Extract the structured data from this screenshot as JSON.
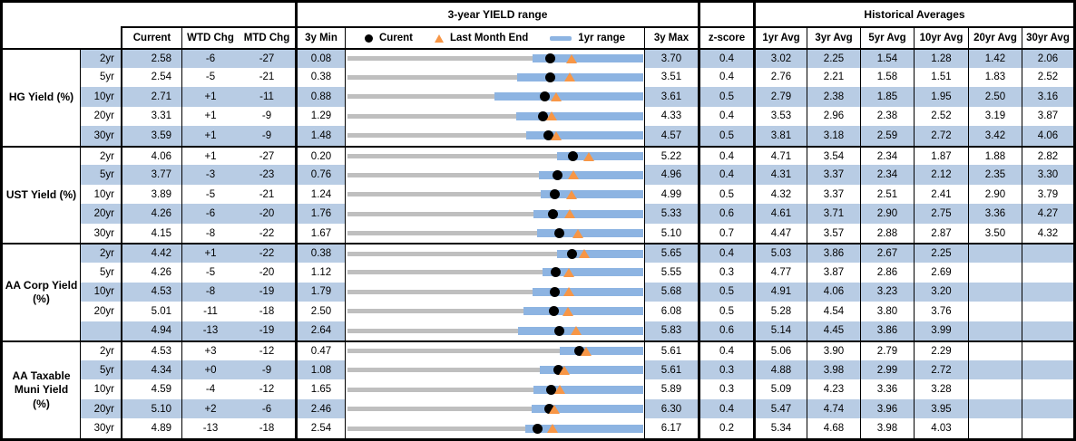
{
  "header": {
    "chart_group_title": "3-year YIELD range",
    "historical_group_title": "Historical Averages",
    "col_current": "Current",
    "col_wtd": "WTD Chg",
    "col_mtd": "MTD Chg",
    "col_min": "3y Min",
    "col_max": "3y Max",
    "col_zscore": "z-score",
    "avg_cols": [
      "1yr Avg",
      "3yr Avg",
      "5yr Avg",
      "10yr Avg",
      "20yr Avg",
      "30yr Avg"
    ],
    "legend": {
      "current": "Curent",
      "last_month_end": "Last Month End",
      "range": "1yr range"
    }
  },
  "colors": {
    "row_band": "#b8cce4",
    "range_bar": "#8db4e2",
    "track": "#bfbfbf",
    "current_dot": "#000000",
    "last_month_triangle": "#f79646"
  },
  "chart_data": {
    "type": "table",
    "embedded_chart": {
      "type": "range-dot",
      "note": "per-row horizontal range from 3y Min to 3y Max; blue bar = 1yr range; black dot = Current; orange triangle = Last Month End",
      "legend_position": "header row of chart column"
    },
    "sections": [
      {
        "label_lines": [
          "HG Yield (%)"
        ],
        "rows": [
          {
            "tenor": "2yr",
            "current": "2.58",
            "wtd": "-6",
            "mtd": "-27",
            "min": "0.08",
            "max": "3.70",
            "z": "0.4",
            "avgs": [
              "3.02",
              "2.25",
              "1.54",
              "1.28",
              "1.42",
              "2.06"
            ],
            "cur_v": 2.58,
            "min_v": 0.08,
            "max_v": 3.7,
            "lme_v": 2.85,
            "r1lo": 2.4,
            "r1hi": 3.7
          },
          {
            "tenor": "5yr",
            "current": "2.54",
            "wtd": "-5",
            "mtd": "-21",
            "min": "0.38",
            "max": "3.51",
            "z": "0.4",
            "avgs": [
              "2.76",
              "2.21",
              "1.58",
              "1.51",
              "1.83",
              "2.52"
            ],
            "cur_v": 2.54,
            "min_v": 0.38,
            "max_v": 3.51,
            "lme_v": 2.75,
            "r1lo": 2.22,
            "r1hi": 3.51
          },
          {
            "tenor": "10yr",
            "current": "2.71",
            "wtd": "+1",
            "mtd": "-11",
            "min": "0.88",
            "max": "3.61",
            "z": "0.5",
            "avgs": [
              "2.79",
              "2.38",
              "1.85",
              "1.95",
              "2.50",
              "3.16"
            ],
            "cur_v": 2.71,
            "min_v": 0.88,
            "max_v": 3.61,
            "lme_v": 2.82,
            "r1lo": 2.27,
            "r1hi": 3.61
          },
          {
            "tenor": "20yr",
            "current": "3.31",
            "wtd": "+1",
            "mtd": "-9",
            "min": "1.29",
            "max": "4.33",
            "z": "0.4",
            "avgs": [
              "3.53",
              "2.96",
              "2.38",
              "2.52",
              "3.19",
              "3.87"
            ],
            "cur_v": 3.31,
            "min_v": 1.29,
            "max_v": 4.33,
            "lme_v": 3.4,
            "r1lo": 3.07,
            "r1hi": 4.33
          },
          {
            "tenor": "30yr",
            "current": "3.59",
            "wtd": "+1",
            "mtd": "-9",
            "min": "1.48",
            "max": "4.57",
            "z": "0.5",
            "avgs": [
              "3.81",
              "3.18",
              "2.59",
              "2.72",
              "3.42",
              "4.06"
            ],
            "cur_v": 3.59,
            "min_v": 1.48,
            "max_v": 4.57,
            "lme_v": 3.68,
            "r1lo": 3.39,
            "r1hi": 4.57
          }
        ]
      },
      {
        "label_lines": [
          "UST Yield (%)"
        ],
        "rows": [
          {
            "tenor": "2yr",
            "current": "4.06",
            "wtd": "+1",
            "mtd": "-27",
            "min": "0.20",
            "max": "5.22",
            "z": "0.4",
            "avgs": [
              "4.71",
              "3.54",
              "2.34",
              "1.87",
              "1.88",
              "2.82"
            ],
            "cur_v": 4.06,
            "min_v": 0.2,
            "max_v": 5.22,
            "lme_v": 4.33,
            "r1lo": 3.84,
            "r1hi": 5.22
          },
          {
            "tenor": "5yr",
            "current": "3.77",
            "wtd": "-3",
            "mtd": "-23",
            "min": "0.76",
            "max": "4.96",
            "z": "0.4",
            "avgs": [
              "4.31",
              "3.37",
              "2.34",
              "2.12",
              "2.35",
              "3.30"
            ],
            "cur_v": 3.77,
            "min_v": 0.76,
            "max_v": 4.96,
            "lme_v": 4.0,
            "r1lo": 3.55,
            "r1hi": 4.96
          },
          {
            "tenor": "10yr",
            "current": "3.89",
            "wtd": "-5",
            "mtd": "-21",
            "min": "1.24",
            "max": "4.99",
            "z": "0.5",
            "avgs": [
              "4.32",
              "3.37",
              "2.51",
              "2.41",
              "2.90",
              "3.79"
            ],
            "cur_v": 3.89,
            "min_v": 1.24,
            "max_v": 4.99,
            "lme_v": 4.1,
            "r1lo": 3.75,
            "r1hi": 4.99
          },
          {
            "tenor": "20yr",
            "current": "4.26",
            "wtd": "-6",
            "mtd": "-20",
            "min": "1.76",
            "max": "5.33",
            "z": "0.6",
            "avgs": [
              "4.61",
              "3.71",
              "2.90",
              "2.75",
              "3.36",
              "4.27"
            ],
            "cur_v": 4.26,
            "min_v": 1.76,
            "max_v": 5.33,
            "lme_v": 4.46,
            "r1lo": 4.06,
            "r1hi": 5.33
          },
          {
            "tenor": "30yr",
            "current": "4.15",
            "wtd": "-8",
            "mtd": "-22",
            "min": "1.67",
            "max": "5.10",
            "z": "0.7",
            "avgs": [
              "4.47",
              "3.57",
              "2.88",
              "2.87",
              "3.50",
              "4.32"
            ],
            "cur_v": 4.15,
            "min_v": 1.67,
            "max_v": 5.1,
            "lme_v": 4.37,
            "r1lo": 3.92,
            "r1hi": 5.1
          }
        ]
      },
      {
        "label_lines": [
          "AA Corp Yield",
          "(%)"
        ],
        "rows": [
          {
            "tenor": "2yr",
            "current": "4.42",
            "wtd": "+1",
            "mtd": "-22",
            "min": "0.38",
            "max": "5.65",
            "z": "0.4",
            "avgs": [
              "5.03",
              "3.86",
              "2.67",
              "2.25",
              "",
              ""
            ],
            "cur_v": 4.42,
            "min_v": 0.38,
            "max_v": 5.65,
            "lme_v": 4.64,
            "r1lo": 4.21,
            "r1hi": 5.65
          },
          {
            "tenor": "5yr",
            "current": "4.26",
            "wtd": "-5",
            "mtd": "-20",
            "min": "1.12",
            "max": "5.55",
            "z": "0.3",
            "avgs": [
              "4.77",
              "3.87",
              "2.86",
              "2.69",
              "",
              ""
            ],
            "cur_v": 4.26,
            "min_v": 1.12,
            "max_v": 5.55,
            "lme_v": 4.46,
            "r1lo": 4.11,
            "r1hi": 5.55
          },
          {
            "tenor": "10yr",
            "current": "4.53",
            "wtd": "-8",
            "mtd": "-19",
            "min": "1.79",
            "max": "5.68",
            "z": "0.5",
            "avgs": [
              "4.91",
              "4.06",
              "3.23",
              "3.20",
              "",
              ""
            ],
            "cur_v": 4.53,
            "min_v": 1.79,
            "max_v": 5.68,
            "lme_v": 4.72,
            "r1lo": 4.28,
            "r1hi": 5.68
          },
          {
            "tenor": "20yr",
            "current": "5.01",
            "wtd": "-11",
            "mtd": "-18",
            "min": "2.50",
            "max": "6.08",
            "z": "0.5",
            "avgs": [
              "5.28",
              "4.54",
              "3.80",
              "3.76",
              "",
              ""
            ],
            "cur_v": 5.01,
            "min_v": 2.5,
            "max_v": 6.08,
            "lme_v": 5.19,
            "r1lo": 4.68,
            "r1hi": 6.08
          },
          {
            "tenor": "",
            "current": "4.94",
            "wtd": "-13",
            "mtd": "-19",
            "min": "2.64",
            "max": "5.83",
            "z": "0.6",
            "avgs": [
              "5.14",
              "4.45",
              "3.86",
              "3.99",
              "",
              ""
            ],
            "cur_v": 4.94,
            "min_v": 2.64,
            "max_v": 5.83,
            "lme_v": 5.13,
            "r1lo": 4.53,
            "r1hi": 5.83
          }
        ]
      },
      {
        "label_lines": [
          "AA Taxable",
          "Muni Yield",
          "(%)"
        ],
        "rows": [
          {
            "tenor": "2yr",
            "current": "4.53",
            "wtd": "+3",
            "mtd": "-12",
            "min": "0.47",
            "max": "5.61",
            "z": "0.4",
            "avgs": [
              "5.06",
              "3.90",
              "2.79",
              "2.29",
              "",
              ""
            ],
            "cur_v": 4.53,
            "min_v": 0.47,
            "max_v": 5.61,
            "lme_v": 4.65,
            "r1lo": 4.25,
            "r1hi": 5.61
          },
          {
            "tenor": "5yr",
            "current": "4.34",
            "wtd": "+0",
            "mtd": "-9",
            "min": "1.08",
            "max": "5.61",
            "z": "0.3",
            "avgs": [
              "4.88",
              "3.98",
              "2.99",
              "2.72",
              "",
              ""
            ],
            "cur_v": 4.34,
            "min_v": 1.08,
            "max_v": 5.61,
            "lme_v": 4.43,
            "r1lo": 4.1,
            "r1hi": 5.61
          },
          {
            "tenor": "10yr",
            "current": "4.59",
            "wtd": "-4",
            "mtd": "-12",
            "min": "1.65",
            "max": "5.89",
            "z": "0.3",
            "avgs": [
              "5.09",
              "4.23",
              "3.36",
              "3.28",
              "",
              ""
            ],
            "cur_v": 4.59,
            "min_v": 1.65,
            "max_v": 5.89,
            "lme_v": 4.71,
            "r1lo": 4.38,
            "r1hi": 5.89
          },
          {
            "tenor": "20yr",
            "current": "5.10",
            "wtd": "+2",
            "mtd": "-6",
            "min": "2.46",
            "max": "6.30",
            "z": "0.4",
            "avgs": [
              "5.47",
              "4.74",
              "3.96",
              "3.95",
              "",
              ""
            ],
            "cur_v": 5.1,
            "min_v": 2.46,
            "max_v": 6.3,
            "lme_v": 5.16,
            "r1lo": 4.91,
            "r1hi": 6.3
          },
          {
            "tenor": "30yr",
            "current": "4.89",
            "wtd": "-13",
            "mtd": "-18",
            "min": "2.54",
            "max": "6.17",
            "z": "0.2",
            "avgs": [
              "5.34",
              "4.68",
              "3.98",
              "4.03",
              "",
              ""
            ],
            "cur_v": 4.89,
            "min_v": 2.54,
            "max_v": 6.17,
            "lme_v": 5.07,
            "r1lo": 4.78,
            "r1hi": 6.17
          }
        ]
      }
    ]
  }
}
